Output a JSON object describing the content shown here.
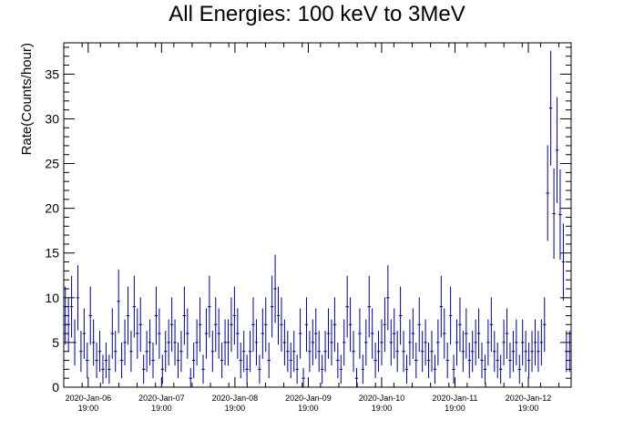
{
  "chart_data": {
    "type": "scatter",
    "title": "All Energies:  100 keV to 3MeV",
    "xlabel": "",
    "ylabel": "Rate(Counts/hour)",
    "ylim": [
      0,
      38.5
    ],
    "xlim": [
      0,
      166
    ],
    "grid": false,
    "legend": "none",
    "y_ticks": [
      0,
      5,
      10,
      15,
      20,
      25,
      30,
      35
    ],
    "x_ticks": [
      {
        "x": 8,
        "date": "2020-Jan-06",
        "time": "19:00"
      },
      {
        "x": 32,
        "date": "2020-Jan-07",
        "time": "19:00"
      },
      {
        "x": 56,
        "date": "2020-Jan-08",
        "time": "19:00"
      },
      {
        "x": 80,
        "date": "2020-Jan-09",
        "time": "19:00"
      },
      {
        "x": 104,
        "date": "2020-Jan-10",
        "time": "19:00"
      },
      {
        "x": 128,
        "date": "2020-Jan-11",
        "time": "19:00"
      },
      {
        "x": 152,
        "date": "2020-Jan-12",
        "time": "19:00"
      }
    ],
    "x_unit_note": "hours",
    "series": [
      {
        "color": "#000080",
        "error_bars": "sqrt",
        "values": [
          8,
          7,
          9,
          5,
          10,
          4,
          6,
          3,
          8,
          5,
          3,
          4,
          2,
          3,
          2,
          6,
          4,
          9.6,
          3,
          5,
          8,
          4,
          9,
          6,
          7,
          2,
          4,
          5,
          3,
          8,
          6,
          2,
          4,
          5,
          7,
          5,
          3,
          4,
          8,
          6,
          1,
          3,
          5,
          7,
          2,
          6,
          9,
          4,
          7,
          6,
          3,
          5,
          5,
          7,
          8,
          6,
          3,
          4,
          2,
          4,
          7,
          5,
          2,
          6,
          7,
          3,
          9,
          11,
          8,
          7,
          5,
          4,
          3,
          4,
          2,
          6,
          1,
          7,
          4,
          5,
          6,
          4,
          2,
          4,
          6,
          5,
          7,
          3,
          2,
          5,
          9,
          7,
          4,
          1,
          6,
          2,
          5,
          9,
          6,
          3,
          4,
          5,
          7,
          10,
          5,
          6,
          4,
          8,
          4,
          2,
          5,
          6,
          3,
          7,
          4,
          5,
          3,
          4,
          2,
          5,
          9,
          6,
          3,
          8,
          2,
          5,
          7,
          4,
          6,
          3,
          4,
          5,
          6,
          3,
          2,
          5,
          7,
          4,
          3,
          2,
          5,
          6,
          3,
          4,
          5,
          2,
          5,
          4,
          3,
          4,
          5,
          4,
          5,
          7,
          21.7,
          31.2,
          19.4,
          26.5,
          19.3,
          14,
          4,
          4
        ]
      }
    ]
  }
}
